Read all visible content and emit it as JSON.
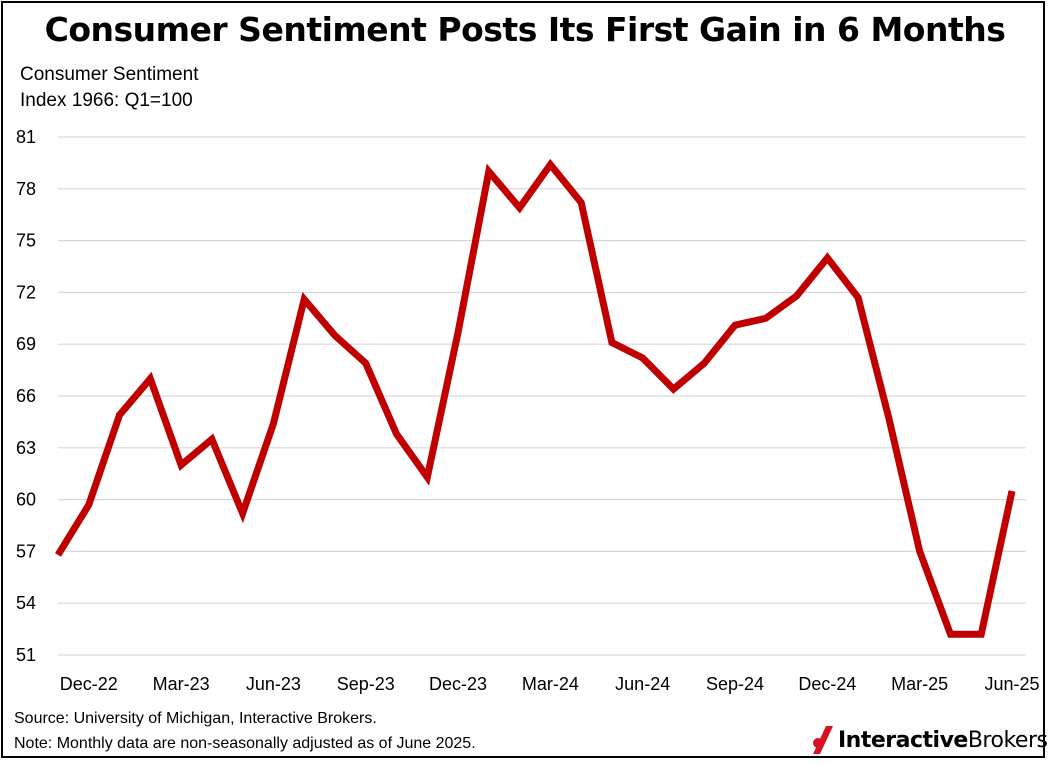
{
  "title": "Consumer Sentiment Posts Its First Gain in 6 Months",
  "y_label_lines": [
    "Consumer Sentiment",
    "Index 1966: Q1=100"
  ],
  "source": "Source: University of Michigan, Interactive Brokers.",
  "note": "Note: Monthly data are non-seasonally adjusted as of June 2025.",
  "logo": {
    "bold": "Interactive",
    "regular": "Brokers"
  },
  "colors": {
    "line": "#c00000",
    "grid": "#d9d9d9",
    "brand": "#d81222"
  },
  "chart_data": {
    "type": "line",
    "title": "Consumer Sentiment Posts Its First Gain in 6 Months",
    "ylabel": "Consumer Sentiment Index 1966: Q1=100",
    "xlabel": "",
    "ylim": [
      51,
      81
    ],
    "yticks": [
      51,
      54,
      57,
      60,
      63,
      66,
      69,
      72,
      75,
      78,
      81
    ],
    "grid": true,
    "x_tick_labels": [
      "Dec-22",
      "Mar-23",
      "Jun-23",
      "Sep-23",
      "Dec-23",
      "Mar-24",
      "Jun-24",
      "Sep-24",
      "Dec-24",
      "Mar-25",
      "Jun-25"
    ],
    "series": [
      {
        "name": "Consumer Sentiment",
        "x": [
          "Nov-22",
          "Dec-22",
          "Jan-23",
          "Feb-23",
          "Mar-23",
          "Apr-23",
          "May-23",
          "Jun-23",
          "Jul-23",
          "Aug-23",
          "Sep-23",
          "Oct-23",
          "Nov-23",
          "Dec-23",
          "Jan-24",
          "Feb-24",
          "Mar-24",
          "Apr-24",
          "May-24",
          "Jun-24",
          "Jul-24",
          "Aug-24",
          "Sep-24",
          "Oct-24",
          "Nov-24",
          "Dec-24",
          "Jan-25",
          "Feb-25",
          "Mar-25",
          "Apr-25",
          "May-25",
          "Jun-25"
        ],
        "values": [
          56.8,
          59.7,
          64.9,
          67.0,
          62.0,
          63.5,
          59.2,
          64.4,
          71.6,
          69.5,
          67.9,
          63.8,
          61.3,
          69.7,
          79.0,
          76.9,
          79.4,
          77.2,
          69.1,
          68.2,
          66.4,
          67.9,
          70.1,
          70.5,
          71.8,
          74.0,
          71.7,
          64.7,
          57.0,
          52.2,
          52.2,
          60.5
        ]
      }
    ]
  }
}
